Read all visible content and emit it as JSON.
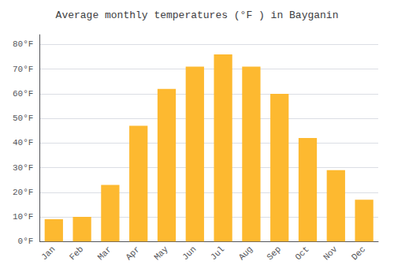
{
  "chart_data": {
    "type": "bar",
    "title": "Average monthly temperatures (°F ) in Bayganin",
    "categories": [
      "Jan",
      "Feb",
      "Mar",
      "Apr",
      "May",
      "Jun",
      "Jul",
      "Aug",
      "Sep",
      "Oct",
      "Nov",
      "Dec"
    ],
    "values": [
      9,
      10,
      23,
      47,
      62,
      71,
      76,
      71,
      60,
      42,
      29,
      17
    ],
    "color": "#FDB930",
    "ylim": [
      0,
      84
    ],
    "yticks": [
      {
        "value": 0,
        "label": "0°F"
      },
      {
        "value": 10,
        "label": "10°F"
      },
      {
        "value": 20,
        "label": "20°F"
      },
      {
        "value": 30,
        "label": "30°F"
      },
      {
        "value": 40,
        "label": "40°F"
      },
      {
        "value": 50,
        "label": "50°F"
      },
      {
        "value": 60,
        "label": "60°F"
      },
      {
        "value": 70,
        "label": "70°F"
      },
      {
        "value": 80,
        "label": "80°F"
      }
    ],
    "grid": true
  }
}
